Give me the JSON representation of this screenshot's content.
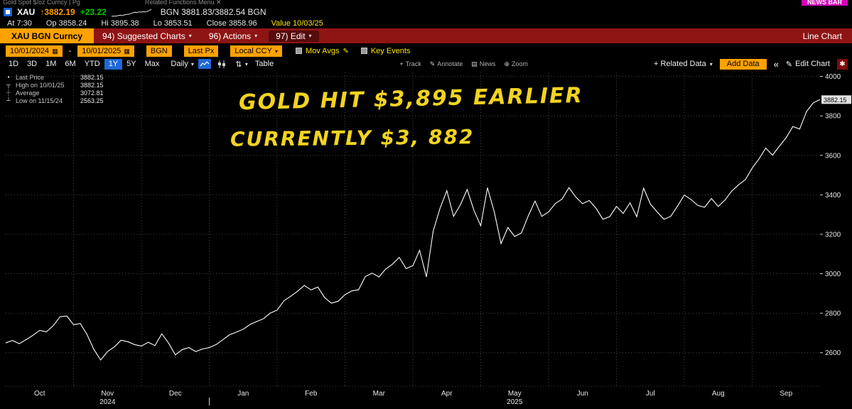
{
  "top_strip": {
    "left_text": "Gold Spot $/oz Curncy | Pg",
    "menu_text": "Related Functions Menu ✕",
    "news_button": "NEWS BAR"
  },
  "ticker": {
    "symbol": "XAU",
    "arrow": "↑",
    "price": "3882.19",
    "change": "+23.22",
    "quote": "BGN 3881.83/3882.54 BGN",
    "sparkline": [
      2563,
      2610,
      2590,
      2700,
      2760,
      2720,
      2810,
      2900,
      2950,
      3060,
      3180,
      3330,
      3250,
      3400,
      3340,
      3420,
      3380,
      3460,
      3650,
      3882
    ]
  },
  "stats": {
    "at": "At 7:30",
    "op": "Op 3858.24",
    "hi": "Hi 3895.38",
    "lo": "Lo 3853.51",
    "close": "Close 3858.96",
    "value": "Value 10/03/25"
  },
  "menu_bar": {
    "security": "XAU BGN Curncy",
    "items": [
      {
        "label": "94) Suggested Charts"
      },
      {
        "label": "96) Actions"
      },
      {
        "label": "97) Edit"
      }
    ],
    "right_label": "Line Chart"
  },
  "settings": {
    "date_from": "10/01/2024",
    "date_to": "10/01/2025",
    "source": "BGN",
    "field": "Last Px",
    "currency": "Local CCY",
    "mov_avgs_label": "Mov Avgs",
    "key_events_label": "Key Events"
  },
  "period_row": {
    "ranges": [
      "1D",
      "3D",
      "1M",
      "6M",
      "YTD",
      "1Y",
      "5Y",
      "Max"
    ],
    "active_range": "1Y",
    "frequency": "Daily",
    "table_label": "Table",
    "tools": [
      "Track",
      "Annotate",
      "News",
      "Zoom"
    ],
    "related_data": "+ Related Data",
    "add_data": "Add Data",
    "edit_chart": "Edit Chart"
  },
  "legend": [
    {
      "label": "Last Price",
      "value": "3882.15"
    },
    {
      "label": "High on 10/01/25",
      "value": "3882.15"
    },
    {
      "label": "Average",
      "value": "3072.81"
    },
    {
      "label": "Low on 11/15/24",
      "value": "2563.25"
    }
  ],
  "annotation": {
    "line1": "GOLD HIT $3,895 EARLIER",
    "line2": "CURRENTLY  $3, 882"
  },
  "chart_data": {
    "type": "line",
    "x_labels": [
      "Oct",
      "Nov",
      "Dec",
      "Jan",
      "Feb",
      "Mar",
      "Apr",
      "May",
      "Jun",
      "Jul",
      "Aug",
      "Sep"
    ],
    "year_labels": [
      {
        "label": "2024",
        "start_month": 0,
        "end_month": 2
      },
      {
        "label": "2025",
        "start_month": 3,
        "end_month": 11
      }
    ],
    "yticks": [
      2600,
      2800,
      3000,
      3200,
      3400,
      3600,
      3800,
      4000
    ],
    "ylim": [
      2430,
      4020
    ],
    "last_price": 3882.15,
    "values": [
      2650,
      2662,
      2646,
      2666,
      2688,
      2713,
      2706,
      2736,
      2782,
      2786,
      2742,
      2748,
      2691,
      2616,
      2563,
      2606,
      2629,
      2663,
      2656,
      2641,
      2634,
      2653,
      2636,
      2696,
      2649,
      2589,
      2616,
      2626,
      2606,
      2619,
      2626,
      2641,
      2666,
      2691,
      2704,
      2719,
      2743,
      2758,
      2773,
      2801,
      2816,
      2863,
      2886,
      2911,
      2941,
      2918,
      2933,
      2879,
      2851,
      2861,
      2894,
      2913,
      2919,
      2986,
      3003,
      2984,
      3024,
      3049,
      3083,
      3026,
      3041,
      3119,
      2984,
      3216,
      3331,
      3421,
      3291,
      3349,
      3427,
      3321,
      3243,
      3436,
      3313,
      3153,
      3234,
      3189,
      3207,
      3293,
      3368,
      3291,
      3313,
      3356,
      3379,
      3436,
      3389,
      3355,
      3371,
      3331,
      3276,
      3289,
      3341,
      3306,
      3359,
      3289,
      3434,
      3353,
      3313,
      3276,
      3291,
      3343,
      3399,
      3376,
      3346,
      3337,
      3381,
      3341,
      3374,
      3419,
      3451,
      3477,
      3535,
      3581,
      3637,
      3601,
      3646,
      3689,
      3746,
      3733,
      3821,
      3866,
      3882.15
    ]
  }
}
